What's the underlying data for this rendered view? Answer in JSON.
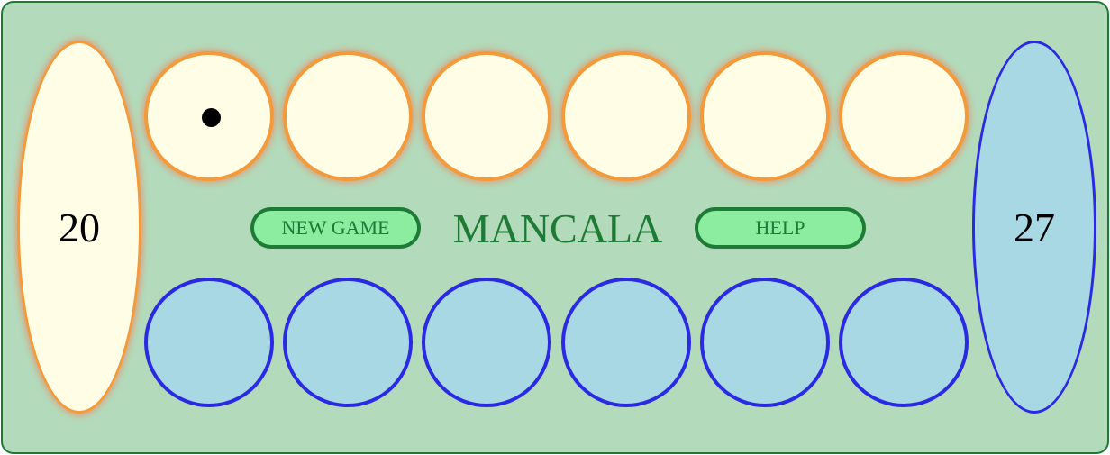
{
  "game": {
    "title": "MANCALA",
    "new_game_label": "NEW GAME",
    "help_label": "HELP"
  },
  "stores": {
    "left": {
      "count": "20",
      "player": "orange"
    },
    "right": {
      "count": "27",
      "player": "blue"
    }
  },
  "pits": {
    "top_row": [
      {
        "seeds": 1
      },
      {
        "seeds": 0
      },
      {
        "seeds": 0
      },
      {
        "seeds": 0
      },
      {
        "seeds": 0
      },
      {
        "seeds": 0
      }
    ],
    "bottom_row": [
      {
        "seeds": 0
      },
      {
        "seeds": 0
      },
      {
        "seeds": 0
      },
      {
        "seeds": 0
      },
      {
        "seeds": 0
      },
      {
        "seeds": 0
      }
    ]
  },
  "colors": {
    "board_bg": "#b3dabb",
    "board_border": "#1e7b36",
    "orange_pit_fill": "#fffde6",
    "orange_pit_border": "#f39a3b",
    "blue_pit_fill": "#a8d8e3",
    "blue_pit_border": "#2a2ae3",
    "button_fill": "#8ceca0",
    "title_color": "#1e7b36"
  }
}
